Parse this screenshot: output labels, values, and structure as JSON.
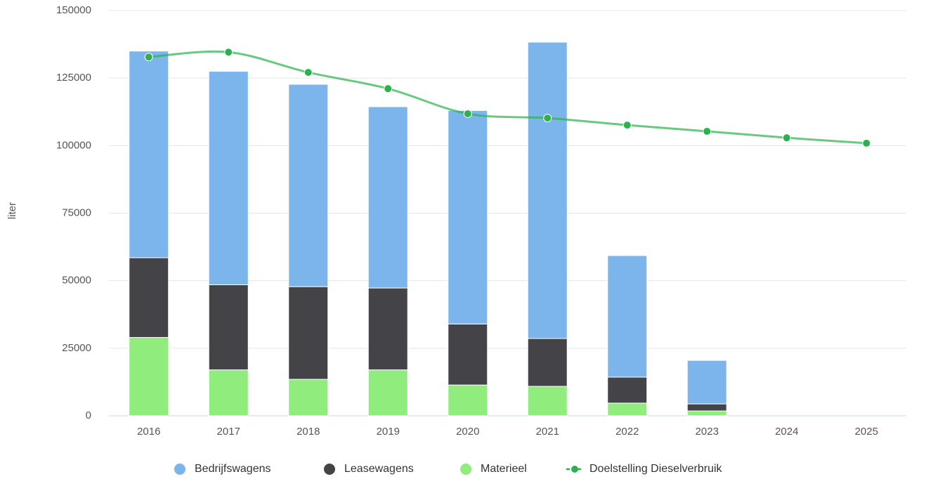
{
  "chart_data": {
    "type": "bar",
    "y_label": "liter",
    "categories": [
      "2016",
      "2017",
      "2018",
      "2019",
      "2020",
      "2021",
      "2022",
      "2023",
      "2024",
      "2025"
    ],
    "stacked": true,
    "series": [
      {
        "name": "Bedrijfswagens",
        "type": "bar",
        "color": "#7cb5ec",
        "values": [
          76500,
          79000,
          74900,
          67100,
          79000,
          109700,
          45000,
          16100,
          null,
          null
        ]
      },
      {
        "name": "Leasewagens",
        "type": "bar",
        "color": "#434348",
        "values": [
          29500,
          31500,
          34300,
          30300,
          22600,
          17700,
          9600,
          2600,
          null,
          null
        ]
      },
      {
        "name": "Materieel",
        "type": "bar",
        "color": "#90ed7d",
        "values": [
          29000,
          17000,
          13500,
          17000,
          11400,
          10900,
          4700,
          1800,
          null,
          null
        ]
      },
      {
        "name": "Doelstelling Dieselverbruik",
        "type": "line",
        "color": "#2bb24c",
        "values": [
          132800,
          134600,
          127100,
          121100,
          111800,
          110200,
          107600,
          105300,
          102900,
          100900
        ]
      }
    ],
    "ylim": [
      0,
      150000
    ],
    "yticks": [
      0,
      25000,
      50000,
      75000,
      100000,
      125000,
      150000
    ],
    "grid": true
  }
}
